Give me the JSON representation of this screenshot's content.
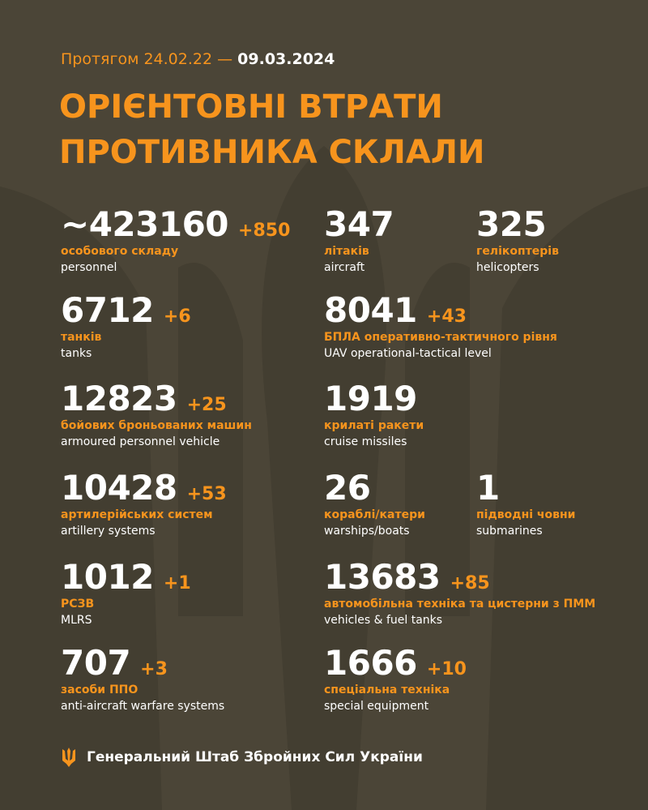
{
  "header": {
    "period_prefix": "Протягом 24.02.22 —",
    "period_end": "09.03.2024"
  },
  "title": {
    "lines": [
      "ОРІЄНТОВНІ ВТРАТИ",
      "ПРОТИВНИКА СКЛАЛИ"
    ]
  },
  "stats": [
    {
      "value": "~423160",
      "delta": "+850",
      "label_uk": "особового складу",
      "label_en": "personnel"
    },
    {
      "value": "6712",
      "delta": "+6",
      "label_uk": "танків",
      "label_en": "tanks"
    },
    {
      "value": "12823",
      "delta": "+25",
      "label_uk": "бойових броньованих машин",
      "label_en": "armoured personnel vehicle"
    },
    {
      "value": "10428",
      "delta": "+53",
      "label_uk": "артилерійських систем",
      "label_en": "artillery systems"
    },
    {
      "value": "1012",
      "delta": "+1",
      "label_uk": "РСЗВ",
      "label_en": "MLRS"
    },
    {
      "value": "707",
      "delta": "+3",
      "label_uk": "засоби ППО",
      "label_en": "anti-aircraft warfare systems"
    },
    {
      "value": "347",
      "label_uk": "літаків",
      "label_en": "aircraft"
    },
    {
      "value": "325",
      "label_uk": "гелікоптерів",
      "label_en": "helicopters"
    },
    {
      "value": "8041",
      "delta": "+43",
      "label_uk": "БПЛА оперативно-тактичного рівня",
      "label_en": "UAV operational-tactical level"
    },
    {
      "value": "1919",
      "label_uk": "крилаті ракети",
      "label_en": "cruise missiles"
    },
    {
      "value": "26",
      "label_uk": "кораблі/катери",
      "label_en": "warships/boats"
    },
    {
      "value": "1",
      "label_uk": "підводні човни",
      "label_en": "submarines"
    },
    {
      "value": "13683",
      "delta": "+85",
      "label_uk": "автомобільна техніка та цистерни з ПММ",
      "label_en": "vehicles & fuel tanks"
    },
    {
      "value": "1666",
      "delta": "+10",
      "label_uk": "спеціальна техніка",
      "label_en": "special equipment"
    }
  ],
  "footer": {
    "text": "Генеральний Штаб Збройних Сил України"
  }
}
